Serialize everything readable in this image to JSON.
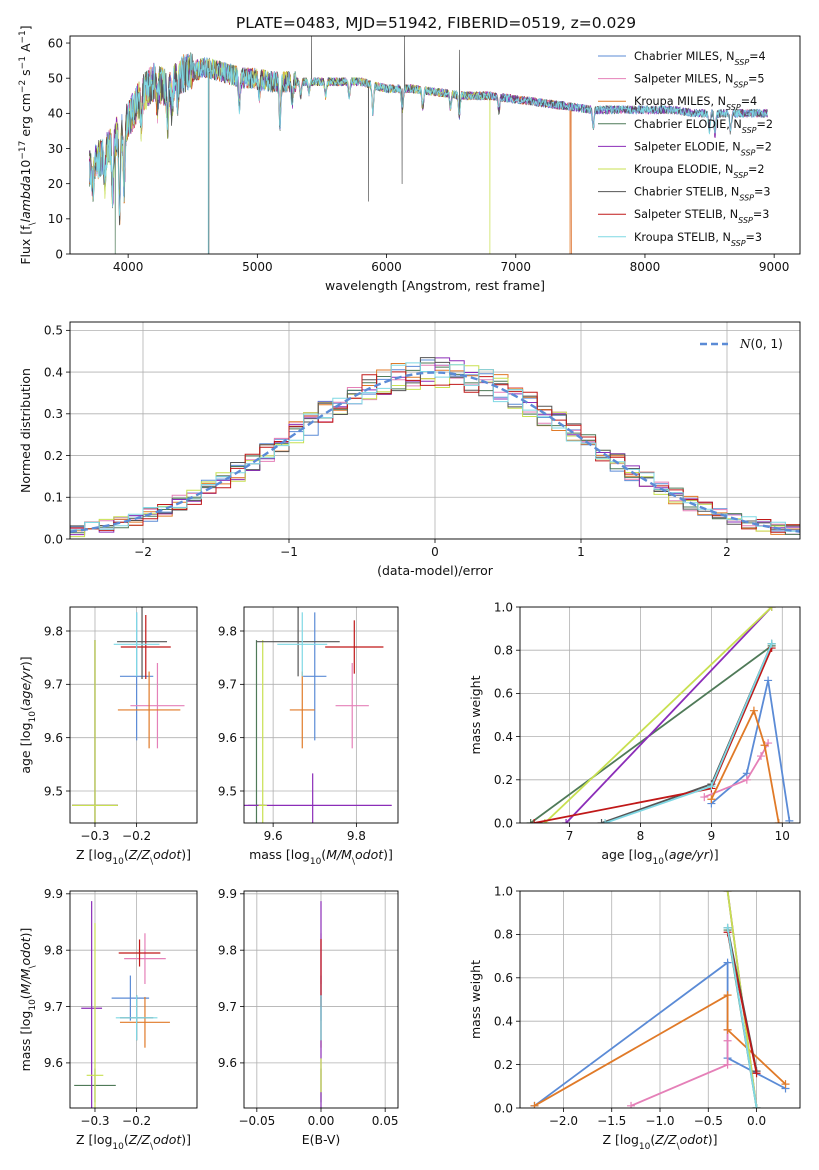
{
  "figure": {
    "title": "PLATE=0483, MJD=51942, FIBERID=0519, z=0.029"
  },
  "colors": {
    "blue": "#5b8bd6",
    "pink": "#e580b8",
    "orange": "#e07a28",
    "darkgreen": "#4f7a58",
    "purple": "#8b2db8",
    "yellowgreen": "#c8e050",
    "gray": "#555555",
    "red": "#c01818",
    "cyan": "#7fd8e4"
  },
  "series_names": [
    "Chabrier MILES, N$_{SSP}$=4",
    "Salpeter MILES, N$_{SSP}$=5",
    "Kroupa MILES, N$_{SSP}$=4",
    "Chabrier ELODIE, N$_{SSP}$=2",
    "Salpeter ELODIE, N$_{SSP}$=2",
    "Kroupa ELODIE, N$_{SSP}$=2",
    "Chabrier STELIB, N$_{SSP}$=3",
    "Salpeter STELIB, N$_{SSP}$=3",
    "Kroupa STELIB, N$_{SSP}$=3"
  ],
  "legend_labels": [
    {
      "pre": "Chabrier MILES, N",
      "sub": "SSP",
      "post": "=4"
    },
    {
      "pre": "Salpeter MILES, N",
      "sub": "SSP",
      "post": "=5"
    },
    {
      "pre": "Kroupa MILES, N",
      "sub": "SSP",
      "post": "=4"
    },
    {
      "pre": "Chabrier ELODIE, N",
      "sub": "SSP",
      "post": "=2"
    },
    {
      "pre": "Salpeter ELODIE, N",
      "sub": "SSP",
      "post": "=2"
    },
    {
      "pre": "Kroupa ELODIE, N",
      "sub": "SSP",
      "post": "=2"
    },
    {
      "pre": "Chabrier STELIB, N",
      "sub": "SSP",
      "post": "=3"
    },
    {
      "pre": "Salpeter STELIB, N",
      "sub": "SSP",
      "post": "=3"
    },
    {
      "pre": "Kroupa STELIB, N",
      "sub": "SSP",
      "post": "=3"
    }
  ],
  "chart_data": [
    {
      "id": "spectrum",
      "type": "line",
      "xlabel": "wavelength [Angstrom, rest frame]",
      "ylabel": "Flux [f$_\\lambda$10$^{-17}$ erg cm$^{-2}$ s$^{-1}$ A$^{-1}$]",
      "xlim": [
        3550,
        9200
      ],
      "ylim": [
        0,
        62
      ],
      "xticks": [
        4000,
        5000,
        6000,
        7000,
        8000,
        9000
      ],
      "yticks": [
        0,
        10,
        20,
        30,
        40,
        50,
        60
      ],
      "grid": false,
      "legend_position": "top-right",
      "continuum": [
        [
          3700,
          24
        ],
        [
          3800,
          28
        ],
        [
          3900,
          33
        ],
        [
          4000,
          38
        ],
        [
          4100,
          45
        ],
        [
          4200,
          49
        ],
        [
          4300,
          47
        ],
        [
          4400,
          51
        ],
        [
          4500,
          52
        ],
        [
          4600,
          53
        ],
        [
          4700,
          52
        ],
        [
          4800,
          51
        ],
        [
          4900,
          50
        ],
        [
          5000,
          50
        ],
        [
          5100,
          49
        ],
        [
          5200,
          49
        ],
        [
          5400,
          49
        ],
        [
          5600,
          49
        ],
        [
          5800,
          49
        ],
        [
          6000,
          47
        ],
        [
          6200,
          47
        ],
        [
          6400,
          46
        ],
        [
          6600,
          45
        ],
        [
          6800,
          45
        ],
        [
          7000,
          44
        ],
        [
          7200,
          43
        ],
        [
          7400,
          42
        ],
        [
          7600,
          41
        ],
        [
          7800,
          41
        ],
        [
          8000,
          41
        ],
        [
          8200,
          41
        ],
        [
          8400,
          40
        ],
        [
          8600,
          40
        ],
        [
          8800,
          40
        ],
        [
          8950,
          40
        ]
      ],
      "absorption_lines": [
        [
          3727,
          6
        ],
        [
          3820,
          8
        ],
        [
          3880,
          15
        ],
        [
          3934,
          22
        ],
        [
          3969,
          20
        ],
        [
          4102,
          8
        ],
        [
          4226,
          6
        ],
        [
          4305,
          10
        ],
        [
          4340,
          8
        ],
        [
          4383,
          6
        ],
        [
          4861,
          8
        ],
        [
          5015,
          4
        ],
        [
          5175,
          12
        ],
        [
          5270,
          6
        ],
        [
          5335,
          4
        ],
        [
          5400,
          3
        ],
        [
          5528,
          4
        ],
        [
          5711,
          4
        ],
        [
          5894,
          8
        ],
        [
          6122,
          6
        ],
        [
          6280,
          5
        ],
        [
          6495,
          4
        ],
        [
          6563,
          6
        ],
        [
          6870,
          4
        ],
        [
          7600,
          5
        ],
        [
          8498,
          5
        ],
        [
          8542,
          6
        ],
        [
          8662,
          5
        ]
      ],
      "spikes": [
        {
          "series": 3,
          "x": 3900,
          "y": 0
        },
        {
          "series": 8,
          "x": 4620,
          "y": 0
        },
        {
          "series": 6,
          "x": 4625,
          "y": 0
        },
        {
          "series": 6,
          "x": 5420,
          "y": 62
        },
        {
          "series": 6,
          "x": 5860,
          "y": 15
        },
        {
          "series": 6,
          "x": 6120,
          "y": 20
        },
        {
          "series": 6,
          "x": 6140,
          "y": 62
        },
        {
          "series": 5,
          "x": 6800,
          "y": 0
        },
        {
          "series": 6,
          "x": 6565,
          "y": 58
        },
        {
          "series": 7,
          "x": 7430,
          "y": 0
        },
        {
          "series": 2,
          "x": 7420,
          "y": 0
        }
      ],
      "end_x": [
        8950,
        8950,
        7430,
        8950,
        8950,
        6800,
        8950,
        7430,
        8950
      ]
    },
    {
      "id": "residual_histogram",
      "type": "bar",
      "xlabel": "(data-model)/error",
      "ylabel": "Normed distribution",
      "xlim": [
        -2.5,
        2.5
      ],
      "ylim": [
        0,
        0.52
      ],
      "xticks": [
        -2,
        -1,
        0,
        1,
        2
      ],
      "yticks": [
        0.0,
        0.1,
        0.2,
        0.3,
        0.4,
        0.5
      ],
      "grid": true,
      "legend_position": "top-right",
      "bin_width": 0.1,
      "bins_from": -2.5,
      "reference_curve": {
        "name": "$\\mathcal{N}(0,1)$",
        "label_main": "N",
        "label_rest": "(0, 1)",
        "mu": 0,
        "sigma": 1
      },
      "bin_variation_scale": 0.035
    },
    {
      "id": "age_vs_Z",
      "type": "scatter",
      "xlabel": "Z [log$_{10}$($Z/Z_\\odot$)]",
      "ylabel": "age  [log$_{10}$($age/yr$)]",
      "xlim": [
        -0.36,
        -0.055
      ],
      "ylim": [
        9.44,
        9.845
      ],
      "xticks": [
        -0.3,
        -0.2
      ],
      "yticks": [
        9.5,
        9.6,
        9.7,
        9.8
      ],
      "grid": true,
      "points": [
        {
          "series": 0,
          "x": -0.2,
          "y": 9.715,
          "xerr": 0.04,
          "yerr": 0.12
        },
        {
          "series": 1,
          "x": -0.15,
          "y": 9.66,
          "xerr": 0.065,
          "yerr": 0.08
        },
        {
          "series": 2,
          "x": -0.17,
          "y": 9.652,
          "xerr": 0.075,
          "yerr": 0.072
        },
        {
          "series": 3,
          "x": -0.3,
          "y": 9.473,
          "xerr": 0.055,
          "yerr": 0.31
        },
        {
          "series": 4,
          "x": -0.3,
          "y": 9.473,
          "xerr": 0.055,
          "yerr": 0.31
        },
        {
          "series": 5,
          "x": -0.3,
          "y": 9.473,
          "xerr": 0.055,
          "yerr": 0.31
        },
        {
          "series": 6,
          "x": -0.187,
          "y": 9.78,
          "xerr": 0.06,
          "yerr": 0.07
        },
        {
          "series": 7,
          "x": -0.178,
          "y": 9.77,
          "xerr": 0.06,
          "yerr": 0.06
        },
        {
          "series": 8,
          "x": -0.2,
          "y": 9.775,
          "xerr": 0.055,
          "yerr": 0.06
        }
      ]
    },
    {
      "id": "age_vs_mass",
      "type": "scatter",
      "xlabel": "mass [log$_{10}$($M/M_\\odot$)]",
      "ylabel": "",
      "xlim": [
        9.53,
        9.9
      ],
      "ylim": [
        9.44,
        9.845
      ],
      "xticks": [
        9.6,
        9.8
      ],
      "yticks": [
        9.5,
        9.6,
        9.7,
        9.8
      ],
      "grid": true,
      "points": [
        {
          "series": 0,
          "x": 9.7,
          "y": 9.715,
          "xerr": 0.028,
          "yerr": 0.12
        },
        {
          "series": 1,
          "x": 9.79,
          "y": 9.66,
          "xerr": 0.04,
          "yerr": 0.08
        },
        {
          "series": 2,
          "x": 9.67,
          "y": 9.652,
          "xerr": 0.03,
          "yerr": 0.072
        },
        {
          "series": 3,
          "x": 9.56,
          "y": 9.473,
          "xerr": 0.02,
          "yerr": 0.31
        },
        {
          "series": 4,
          "x": 9.695,
          "y": 9.473,
          "xerr": 0.19,
          "yerr": 0.06
        },
        {
          "series": 5,
          "x": 9.575,
          "y": 9.473,
          "xerr": 0.01,
          "yerr": 0.31
        },
        {
          "series": 6,
          "x": 9.66,
          "y": 9.78,
          "xerr": 0.1,
          "yerr": 0.065
        },
        {
          "series": 7,
          "x": 9.795,
          "y": 9.77,
          "xerr": 0.07,
          "yerr": 0.05
        },
        {
          "series": 8,
          "x": 9.67,
          "y": 9.775,
          "xerr": 0.06,
          "yerr": 0.06
        }
      ]
    },
    {
      "id": "weight_vs_age",
      "type": "line",
      "xlabel": "age  [log$_{10}$($age/yr$)]",
      "ylabel": "mass weight",
      "xlim": [
        6.3,
        10.25
      ],
      "ylim": [
        0,
        1.0
      ],
      "xticks": [
        7,
        8,
        9,
        10
      ],
      "yticks": [
        0.0,
        0.2,
        0.4,
        0.6,
        0.8,
        1.0
      ],
      "grid": true,
      "series": [
        {
          "series": 0,
          "x": [
            9.0,
            9.5,
            9.8,
            10.1
          ],
          "y": [
            0.09,
            0.23,
            0.66,
            0.01
          ]
        },
        {
          "series": 1,
          "x": [
            8.9,
            9.5,
            9.7,
            9.8
          ],
          "y": [
            0.12,
            0.2,
            0.31,
            0.37
          ]
        },
        {
          "series": 2,
          "x": [
            9.0,
            9.6,
            9.75,
            9.95
          ],
          "y": [
            0.11,
            0.52,
            0.36,
            0.0
          ]
        },
        {
          "series": 3,
          "x": [
            6.45,
            9.85
          ],
          "y": [
            0.0,
            0.82
          ]
        },
        {
          "series": 4,
          "x": [
            6.95,
            9.85
          ],
          "y": [
            0.0,
            1.0
          ]
        },
        {
          "series": 5,
          "x": [
            6.65,
            9.85
          ],
          "y": [
            0.0,
            1.0
          ]
        },
        {
          "series": 6,
          "x": [
            7.45,
            9.0,
            9.85
          ],
          "y": [
            0.0,
            0.18,
            0.83
          ]
        },
        {
          "series": 7,
          "x": [
            6.5,
            9.0,
            9.85
          ],
          "y": [
            0.0,
            0.16,
            0.81
          ]
        },
        {
          "series": 8,
          "x": [
            7.5,
            9.0,
            9.85
          ],
          "y": [
            0.0,
            0.17,
            0.83
          ]
        }
      ]
    },
    {
      "id": "mass_vs_Z",
      "type": "scatter",
      "xlabel": "Z [log$_{10}$($Z/Z_\\odot$)]",
      "ylabel": "mass [log$_{10}$($M/M_\\odot$)]",
      "xlim": [
        -0.36,
        -0.055
      ],
      "ylim": [
        9.52,
        9.905
      ],
      "xticks": [
        -0.3,
        -0.2
      ],
      "yticks": [
        9.6,
        9.7,
        9.8,
        9.9
      ],
      "grid": true,
      "points": [
        {
          "series": 0,
          "x": -0.215,
          "y": 9.715,
          "xerr": 0.045,
          "yerr": 0.04
        },
        {
          "series": 1,
          "x": -0.18,
          "y": 9.785,
          "xerr": 0.05,
          "yerr": 0.045
        },
        {
          "series": 2,
          "x": -0.18,
          "y": 9.672,
          "xerr": 0.06,
          "yerr": 0.045
        },
        {
          "series": 3,
          "x": -0.3,
          "y": 9.56,
          "xerr": 0.05,
          "yerr": 0.03
        },
        {
          "series": 4,
          "x": -0.308,
          "y": 9.697,
          "xerr": 0.025,
          "yerr": 0.19
        },
        {
          "series": 5,
          "x": -0.3,
          "y": 9.578,
          "xerr": 0.02,
          "yerr": 0.27
        },
        {
          "series": 6,
          "x": -0.2,
          "y": 9.68,
          "xerr": 0.04,
          "yerr": 0.04
        },
        {
          "series": 7,
          "x": -0.193,
          "y": 9.795,
          "xerr": 0.05,
          "yerr": 0.024
        },
        {
          "series": 8,
          "x": -0.2,
          "y": 9.68,
          "xerr": 0.05,
          "yerr": 0.04
        }
      ]
    },
    {
      "id": "mass_vs_EBV",
      "type": "scatter",
      "xlabel": "E(B-V)",
      "ylabel": "",
      "xlim": [
        -0.06,
        0.06
      ],
      "ylim": [
        9.52,
        9.905
      ],
      "xticks": [
        -0.05,
        0.0,
        0.05
      ],
      "xtick_labels": [
        "−0.05",
        "0.00",
        "0.05"
      ],
      "yticks": [
        9.6,
        9.7,
        9.8,
        9.9
      ],
      "grid": true,
      "points": [
        {
          "series": 0,
          "x": 0,
          "y": 9.715,
          "xerr": 0,
          "yerr": 0.04
        },
        {
          "series": 1,
          "x": 0,
          "y": 9.785,
          "xerr": 0,
          "yerr": 0.045
        },
        {
          "series": 2,
          "x": 0,
          "y": 9.672,
          "xerr": 0,
          "yerr": 0.045
        },
        {
          "series": 3,
          "x": 0,
          "y": 9.56,
          "xerr": 0,
          "yerr": 0.03
        },
        {
          "series": 4,
          "x": 0,
          "y": 9.697,
          "xerr": 0,
          "yerr": 0.19
        },
        {
          "series": 5,
          "x": 0,
          "y": 9.578,
          "xerr": 0,
          "yerr": 0.03
        },
        {
          "series": 6,
          "x": 0,
          "y": 9.68,
          "xerr": 0,
          "yerr": 0.04
        },
        {
          "series": 7,
          "x": 0,
          "y": 9.76,
          "xerr": 0,
          "yerr": 0.06
        },
        {
          "series": 8,
          "x": 0,
          "y": 9.68,
          "xerr": 0,
          "yerr": 0.04
        }
      ]
    },
    {
      "id": "weight_vs_Z",
      "type": "line",
      "xlabel": "Z [log$_{10}$($Z/Z_\\odot$)]",
      "ylabel": "mass weight",
      "xlim": [
        -2.45,
        0.45
      ],
      "ylim": [
        0,
        1.0
      ],
      "xticks": [
        -2.0,
        -1.5,
        -1.0,
        -0.5,
        0.0
      ],
      "yticks": [
        0.0,
        0.2,
        0.4,
        0.6,
        0.8,
        1.0
      ],
      "grid": true,
      "series": [
        {
          "series": 0,
          "x": [
            -2.3,
            -0.3,
            -0.3,
            0.3
          ],
          "y": [
            0.01,
            0.67,
            0.23,
            0.09
          ]
        },
        {
          "series": 1,
          "x": [
            -1.3,
            -0.3,
            -0.3,
            -0.3
          ],
          "y": [
            0.01,
            0.2,
            0.31,
            0.36
          ]
        },
        {
          "series": 2,
          "x": [
            -2.3,
            -0.3,
            -0.3,
            0.3
          ],
          "y": [
            0.01,
            0.52,
            0.36,
            0.11
          ]
        },
        {
          "series": 3,
          "x": [
            -0.3,
            0.0
          ],
          "y": [
            0.82,
            0.0
          ]
        },
        {
          "series": 4,
          "x": [
            -0.3,
            0.0
          ],
          "y": [
            1.0,
            0.0
          ]
        },
        {
          "series": 5,
          "x": [
            -0.3,
            0.0
          ],
          "y": [
            1.0,
            0.0
          ]
        },
        {
          "series": 6,
          "x": [
            -0.3,
            0.0
          ],
          "y": [
            0.83,
            0.17
          ]
        },
        {
          "series": 7,
          "x": [
            -0.3,
            0.0
          ],
          "y": [
            0.81,
            0.16
          ]
        },
        {
          "series": 8,
          "x": [
            -0.3,
            0.0
          ],
          "y": [
            0.83,
            0.0
          ]
        }
      ]
    }
  ]
}
